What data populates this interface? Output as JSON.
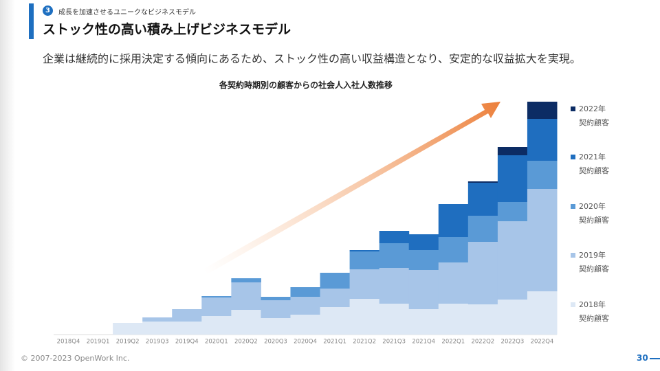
{
  "header": {
    "badge": "3",
    "subtitle": "成長を加速させるユニークなビジネスモデル",
    "title": "ストック性の高い積み上げビジネスモデル",
    "lead": "企業は継続的に採用決定する傾向にあるため、ストック性の高い収益構造となり、安定的な収益拡大を実現。"
  },
  "chart_data": {
    "type": "bar",
    "stacked": true,
    "title": "各契約時期別の顧客からの社会人入社人数推移",
    "categories": [
      "2018Q4",
      "2019Q1",
      "2019Q2",
      "2019Q3",
      "2019Q4",
      "2020Q1",
      "2020Q2",
      "2020Q3",
      "2020Q4",
      "2021Q1",
      "2021Q2",
      "2021Q3",
      "2021Q4",
      "2022Q1",
      "2022Q2",
      "2022Q3",
      "2022Q4"
    ],
    "series": [
      {
        "name": "2018年\n契約顧客",
        "color": "#dde8f5",
        "values": [
          0,
          0,
          17,
          19,
          19,
          27,
          36,
          24,
          29,
          40,
          52,
          45,
          37,
          45,
          44,
          51,
          63
        ]
      },
      {
        "name": "2019年\n契約顧客",
        "color": "#a7c5e8",
        "values": [
          0,
          0,
          0,
          6,
          18,
          27,
          40,
          26,
          26,
          27,
          43,
          52,
          57,
          60,
          91,
          114,
          149
        ]
      },
      {
        "name": "2020年\n契約顧客",
        "color": "#5a9ad6",
        "values": [
          0,
          0,
          0,
          0,
          0,
          2,
          6,
          5,
          14,
          23,
          26,
          36,
          29,
          37,
          38,
          28,
          41
        ]
      },
      {
        "name": "2021年\n契約顧客",
        "color": "#1f6ebf",
        "values": [
          0,
          0,
          0,
          0,
          0,
          0,
          0,
          0,
          0,
          0,
          2,
          18,
          23,
          48,
          48,
          68,
          61
        ]
      },
      {
        "name": "2022年\n契約顧客",
        "color": "#0c2c64",
        "values": [
          0,
          0,
          0,
          0,
          0,
          0,
          0,
          0,
          0,
          0,
          0,
          0,
          0,
          0,
          2,
          12,
          25
        ]
      }
    ],
    "ylim": [
      0,
      350
    ]
  },
  "footer": {
    "copyright": "© 2007-2023 OpenWork Inc.",
    "page": "30"
  }
}
